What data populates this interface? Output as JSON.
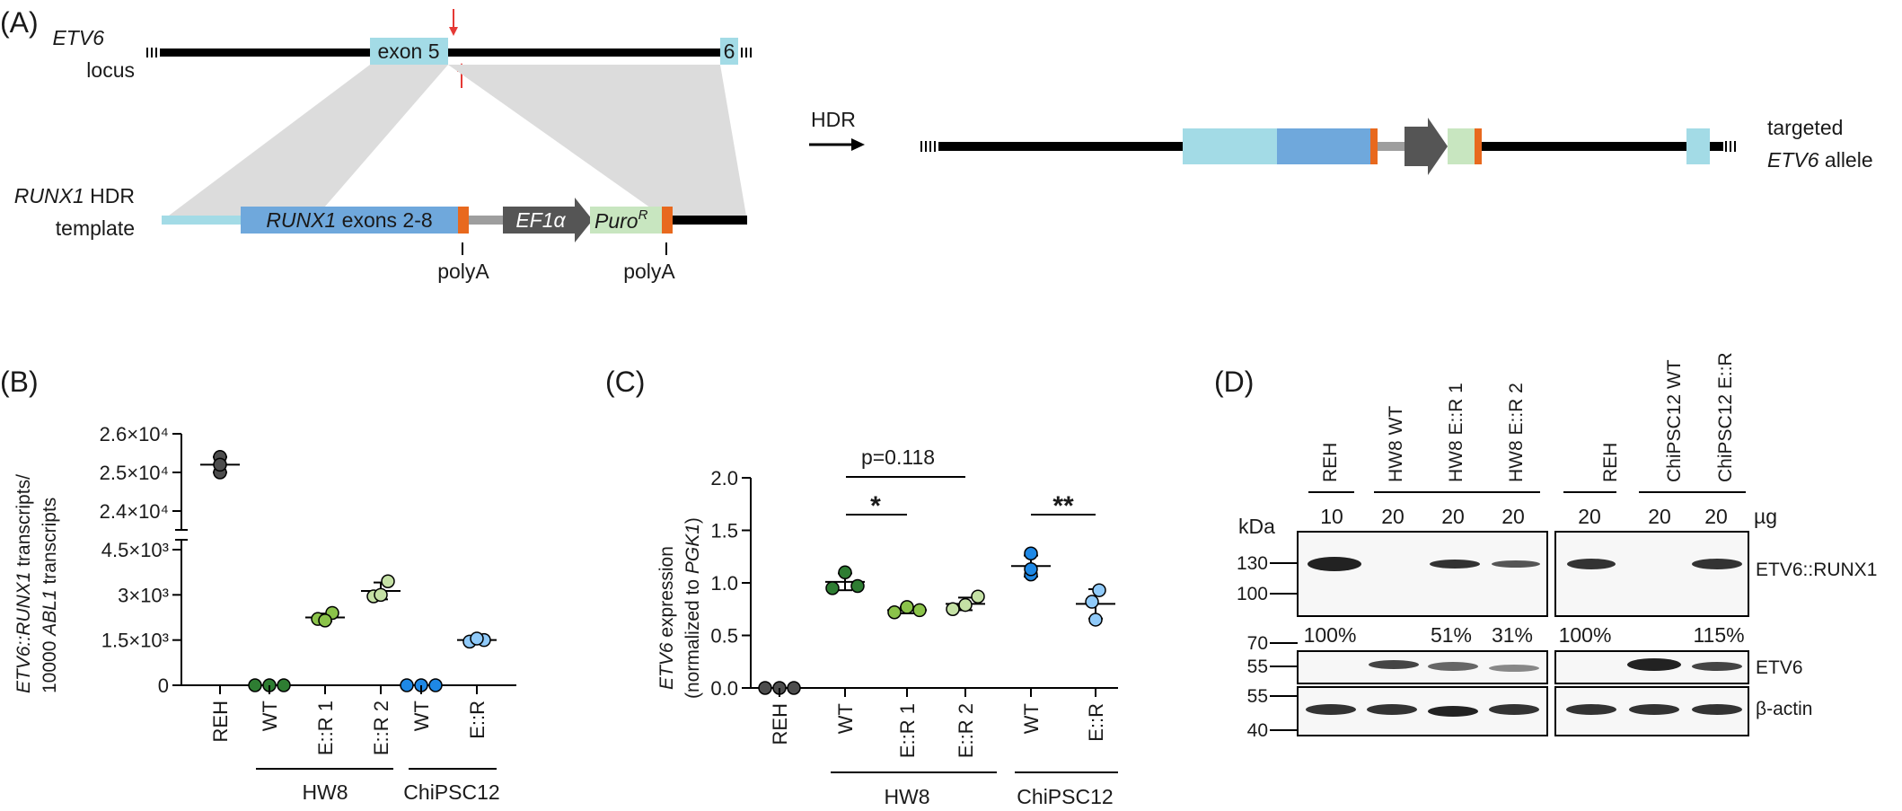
{
  "panels": {
    "A": {
      "label": "(A)",
      "locus": {
        "gene": "ETV6",
        "line2": "locus",
        "exon5": "exon 5",
        "exon6": "6"
      },
      "template": {
        "gene": "RUNX1",
        "suffix": " HDR",
        "line2": "template",
        "exons_gene": "RUNX1",
        "exons_suffix": " exons 2-8",
        "promoter": "EF1α",
        "puro_base": "Puro",
        "puro_sup": "R"
      },
      "polyA_1": "polyA",
      "polyA_2": "polyA",
      "hdr": "HDR",
      "allele": {
        "line1": "targeted",
        "gene": "ETV6",
        "suffix": " allele"
      }
    },
    "B": {
      "label": "(B)",
      "ylabel": {
        "g1": "ETV6::RUNX1",
        "t1": " transcripts/",
        "t2": "10000 ",
        "g2": "ABL1",
        "t3": " transcripts"
      },
      "ticks_upper": [
        "2.6×10⁴",
        "2.5×10⁴",
        "2.4×10⁴"
      ],
      "ticks_lower": [
        "4.5×10³",
        "3×10³",
        "1.5×10³",
        "0"
      ],
      "categories": [
        "REH",
        "WT",
        "E::R 1",
        "E::R 2",
        "WT",
        "E::R"
      ],
      "groups": [
        "HW8",
        "ChiPSC12"
      ]
    },
    "C": {
      "label": "(C)",
      "ylabel": {
        "g1": "ETV6",
        "t1": " expression",
        "t2": "(normalized to ",
        "g2": "PGK1",
        "t3": ")"
      },
      "ticks": [
        "0.0",
        "0.5",
        "1.0",
        "1.5",
        "2.0"
      ],
      "categories": [
        "REH",
        "WT",
        "E::R 1",
        "E::R 2",
        "WT",
        "E::R"
      ],
      "groups": [
        "HW8",
        "ChiPSC12"
      ],
      "sig1": "p=0.118",
      "sig2": "*",
      "sig3": "**"
    },
    "D": {
      "label": "(D)",
      "lanes_left": [
        "REH",
        "HW8 WT",
        "HW8 E::R 1",
        "HW8 E::R 2"
      ],
      "lanes_right": [
        "REH",
        "ChiPSC12 WT",
        "ChiPSC12 E::R"
      ],
      "amounts_left": [
        "10",
        "20",
        "20",
        "20"
      ],
      "amounts_right": [
        "20",
        "20",
        "20"
      ],
      "amount_unit": "µg",
      "kda": "kDa",
      "markers": [
        "130",
        "100",
        "70",
        "55",
        "55",
        "40"
      ],
      "pct_left": [
        "100%",
        "51%",
        "31%"
      ],
      "pct_right": [
        "100%",
        "115%"
      ],
      "rows": [
        "ETV6::RUNX1",
        "ETV6",
        "β-actin"
      ]
    }
  },
  "chart_data": [
    {
      "type": "scatter",
      "panel": "B",
      "categories": [
        "REH",
        "WT",
        "E::R 1",
        "E::R 2",
        "WT",
        "E::R"
      ],
      "axis_break": true,
      "ylim_lower": [
        0,
        5000
      ],
      "ylim_upper": [
        23800,
        26200
      ],
      "series": [
        {
          "category": "REH",
          "values": [
            25400,
            25000,
            25200
          ],
          "color": "#4d4d4d"
        },
        {
          "category": "WT",
          "values": [
            0,
            0,
            0
          ],
          "color": "#2e7d32"
        },
        {
          "category": "E::R 1",
          "values": [
            2200,
            2400,
            2150
          ],
          "color": "#8bc34a"
        },
        {
          "category": "E::R 2",
          "values": [
            2950,
            3450,
            3000
          ],
          "color": "#c5e1a5"
        },
        {
          "category": "WT",
          "values": [
            0,
            0,
            0
          ],
          "color": "#1e88e5"
        },
        {
          "category": "E::R",
          "values": [
            1450,
            1500,
            1550
          ],
          "color": "#90caf9"
        }
      ],
      "mean": [
        25200,
        0,
        2250,
        3130,
        0,
        1500
      ],
      "sd": [
        200,
        0,
        130,
        280,
        0,
        50
      ]
    },
    {
      "type": "scatter",
      "panel": "C",
      "categories": [
        "REH",
        "WT",
        "E::R 1",
        "E::R 2",
        "WT",
        "E::R"
      ],
      "ylim": [
        0,
        2.0
      ],
      "series": [
        {
          "category": "REH",
          "values": [
            0,
            0,
            0
          ],
          "color": "#4d4d4d"
        },
        {
          "category": "WT",
          "values": [
            1.1,
            0.95,
            0.97
          ],
          "color": "#2e7d32"
        },
        {
          "category": "E::R 1",
          "values": [
            0.77,
            0.72,
            0.74
          ],
          "color": "#8bc34a"
        },
        {
          "category": "E::R 2",
          "values": [
            0.87,
            0.75,
            0.79
          ],
          "color": "#c5e1a5"
        },
        {
          "category": "WT",
          "values": [
            1.28,
            1.08,
            1.13
          ],
          "color": "#1e88e5"
        },
        {
          "category": "E::R",
          "values": [
            0.93,
            0.65,
            0.82
          ],
          "color": "#90caf9"
        }
      ],
      "mean": [
        0,
        1.01,
        0.74,
        0.8,
        1.16,
        0.8
      ],
      "sd": [
        0,
        0.08,
        0.03,
        0.06,
        0.1,
        0.14
      ]
    }
  ]
}
